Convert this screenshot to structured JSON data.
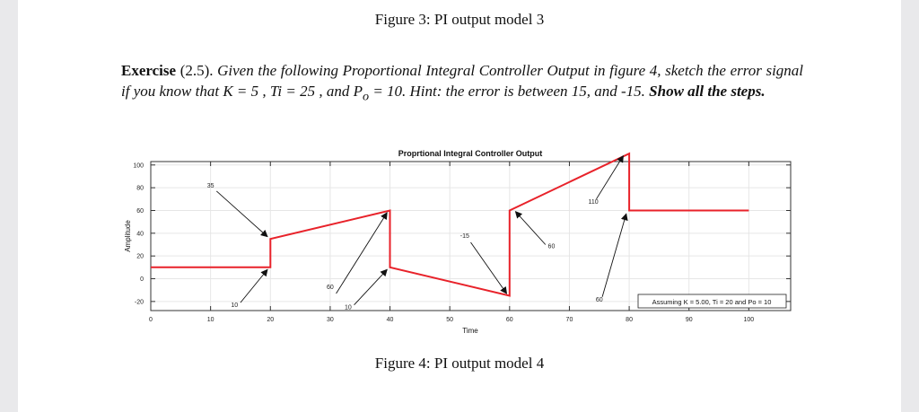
{
  "document": {
    "figure3_caption": "Figure 3: PI output model 3",
    "figure4_caption": "Figure 4: PI output model 4",
    "exercise": {
      "label": "Exercise",
      "number": "(2.5).",
      "body": "Given the following Proportional Integral Controller Output in figure 4, sketch the error signal if you know that K = 5 , Ti = 25 , and P",
      "sub": "o",
      "body2": " = 10. Hint: the error is between 15, and -15.",
      "emphasis": "Show all the steps."
    }
  },
  "chart_data": {
    "type": "line",
    "title": "Proprtional Integral Controller Output",
    "xlabel": "Time",
    "ylabel": "Amplitude",
    "xlim": [
      0,
      107
    ],
    "ylim": [
      -28,
      103
    ],
    "x_ticks": [
      0,
      10,
      20,
      30,
      40,
      50,
      60,
      70,
      80,
      90,
      100
    ],
    "y_ticks": [
      -20,
      0,
      20,
      40,
      60,
      80,
      100
    ],
    "grid": true,
    "line_color": "#e8222a",
    "series": [
      {
        "x": [
          0,
          20,
          20,
          40,
          40,
          60,
          60,
          80,
          80,
          100
        ],
        "y": [
          10,
          10,
          35,
          60,
          10,
          -15,
          60,
          110,
          60,
          60
        ]
      }
    ],
    "annotations": [
      {
        "text": "35",
        "text_x": 10,
        "text_y": 80,
        "arrow_from": [
          11,
          77
        ],
        "arrow_to": [
          19.5,
          37
        ]
      },
      {
        "text": "10",
        "text_x": 14,
        "text_y": -25,
        "arrow_from": [
          15,
          -21
        ],
        "arrow_to": [
          19.5,
          8
        ]
      },
      {
        "text": "60",
        "text_x": 30,
        "text_y": -9,
        "arrow_from": [
          31,
          -13
        ],
        "arrow_to": [
          39.5,
          58
        ]
      },
      {
        "text": "10",
        "text_x": 33,
        "text_y": -27,
        "arrow_from": [
          34,
          -23
        ],
        "arrow_to": [
          39.5,
          8
        ]
      },
      {
        "text": "-15",
        "text_x": 52.5,
        "text_y": 36,
        "arrow_from": [
          53.5,
          32
        ],
        "arrow_to": [
          59.5,
          -13
        ]
      },
      {
        "text": "60",
        "text_x": 67,
        "text_y": 27,
        "arrow_from": [
          66,
          30
        ],
        "arrow_to": [
          61,
          59
        ]
      },
      {
        "text": "110",
        "text_x": 74,
        "text_y": 66,
        "arrow_from": [
          74.5,
          70
        ],
        "arrow_to": [
          79,
          108
        ]
      },
      {
        "text": "60",
        "text_x": 75,
        "text_y": -20,
        "arrow_from": [
          75.5,
          -16
        ],
        "arrow_to": [
          79.5,
          57
        ]
      }
    ],
    "textbox": "Assuming K = 5.00, Ti = 20  and Po = 10"
  }
}
